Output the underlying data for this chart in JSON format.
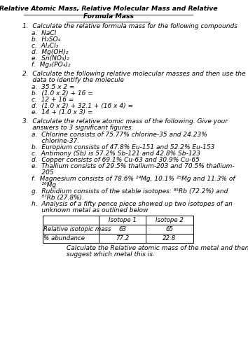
{
  "title_line1": "Relative Atomic Mass, Relative Molecular Mass and Relative",
  "title_line2": "Formula Mass",
  "q1_intro": "1.  Calculate the relative formula mass for the following compounds",
  "q1_items": [
    "a.  NaCl",
    "b.  H₂SO₄",
    "c.  Al₂Cl₃",
    "d.  Mg(OH)₂",
    "e.  Sn(NO₃)₂",
    "f.  Mg₃(PO₄)₂"
  ],
  "q2_intro": "2.  Calculate the following relative molecular masses and then use the",
  "q2_intro2": "     data to identify the molecule",
  "q2_items": [
    "a.  35.5 x 2 =",
    "b.  (1.0 x 2) + 16 =",
    "c.  12 + 16 =",
    "d.  (1.0 x 2) + 32.1 + (16 x 4) =",
    "e.  14 + (1.0 x 3) ="
  ],
  "q3_intro": "3.  Calculate the relative atomic mass of the following. Give your",
  "q3_intro2": "     answers to 3 significant figures.",
  "q3_items": [
    "a.  Chlorine consists of 75.77% chlorine-35 and 24.23%",
    "     chlorine-37.",
    "b.  Europium consists of 47.8% Eu-151 and 52.2% Eu-153",
    "c.  Antimony (Sb) is 57.2% Sb-121 and 42.8% Sb-123",
    "d.  Copper consists of 69.1% Cu-63 and 30.9% Cu-65",
    "e.  Thallium consists of 29.5% thallium-203 and 70.5% thallium-",
    "     205",
    "f.  Magnesium consists of 78.6% ²⁴Mg, 10.1% ²⁵Mg and 11.3% of",
    "     ²⁶Mg",
    "g.  Rubidium consists of the stable isotopes: ⁸⁵Rb (72.2%) and",
    "     ⁸⁷Rb (27.8%).",
    "h.  Analysis of a fifty pence piece showed up two isotopes of an",
    "     unknown metal as outlined below"
  ],
  "table_headers": [
    "",
    "Isotope 1",
    "Isotope 2"
  ],
  "table_row1": [
    "Relative isotopic mass",
    "63",
    "65"
  ],
  "table_row2": [
    "% abundance",
    "77.2",
    "22.8"
  ],
  "table_caption_line1": "Calculate the Relative atomic mass of the metal and then",
  "table_caption_line2": "suggest which metal this is.",
  "bg_color": "#ffffff",
  "text_color": "#000000",
  "font_family": "DejaVu Sans",
  "base_fontsize": 6.5
}
